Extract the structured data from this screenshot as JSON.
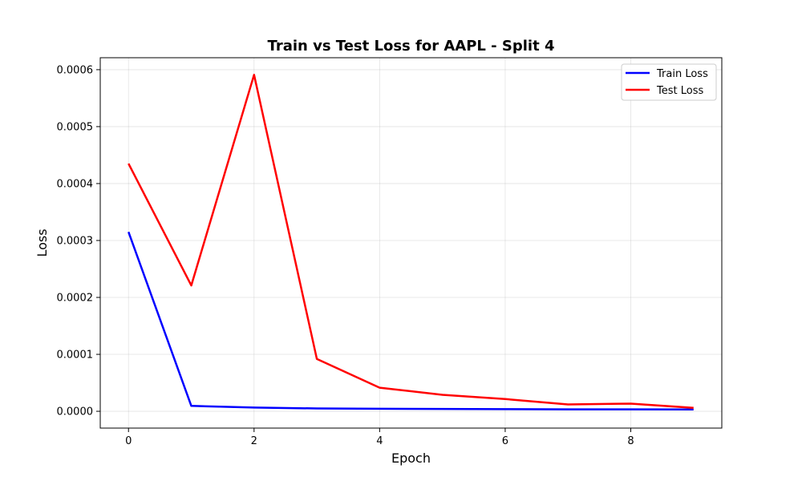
{
  "chart_data": {
    "type": "line",
    "title": "Train vs Test Loss for AAPL - Split 4",
    "xlabel": "Epoch",
    "ylabel": "Loss",
    "x": [
      0,
      1,
      2,
      3,
      4,
      5,
      6,
      7,
      8,
      9
    ],
    "xlim": [
      -0.45,
      9.45
    ],
    "ylim": [
      -2.95e-05,
      0.000621
    ],
    "xticks": [
      0,
      2,
      4,
      6,
      8
    ],
    "xtick_labels": [
      "0",
      "2",
      "4",
      "6",
      "8"
    ],
    "yticks": [
      0,
      0.0001,
      0.0002,
      0.0003,
      0.0004,
      0.0005,
      0.0006
    ],
    "ytick_labels": [
      "0.0000",
      "0.0001",
      "0.0002",
      "0.0003",
      "0.0004",
      "0.0005",
      "0.0006"
    ],
    "grid": true,
    "legend_position": "top-right",
    "series": [
      {
        "name": "Train Loss",
        "color": "#0000ff",
        "values": [
          0.000315,
          9.5e-06,
          6.5e-06,
          5e-06,
          4.5e-06,
          4.2e-06,
          3.8e-06,
          3.5e-06,
          3.5e-06,
          3.3e-06
        ]
      },
      {
        "name": "Test Loss",
        "color": "#ff0000",
        "values": [
          0.000435,
          0.000221,
          0.000591,
          9.2e-05,
          4.15e-05,
          2.9e-05,
          2.15e-05,
          1.2e-05,
          1.35e-05,
          6e-06
        ]
      }
    ]
  }
}
